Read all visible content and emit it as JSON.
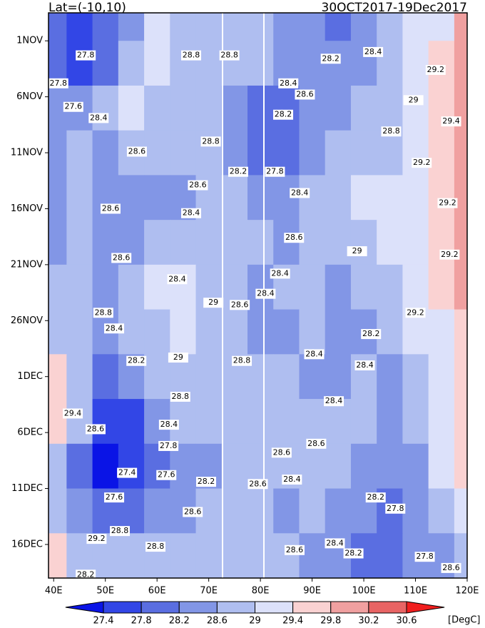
{
  "chart_data": {
    "type": "heatmap",
    "title_left": "Lat=(-10,10)",
    "title_right": "30OCT2017-19Dec2017",
    "unit": "[DegC]",
    "xlim": [
      39,
      120
    ],
    "ylim": [
      -0.5,
      50
    ],
    "xticks": [
      {
        "value": 40,
        "label": "40E"
      },
      {
        "value": 50,
        "label": "50E"
      },
      {
        "value": 60,
        "label": "60E"
      },
      {
        "value": 70,
        "label": "70E"
      },
      {
        "value": 80,
        "label": "80E"
      },
      {
        "value": 90,
        "label": "90E"
      },
      {
        "value": 100,
        "label": "100E"
      },
      {
        "value": 110,
        "label": "110E"
      },
      {
        "value": 120,
        "label": "120E"
      }
    ],
    "yticks": [
      {
        "value": 2,
        "label": "1NOV"
      },
      {
        "value": 7,
        "label": "6NOV"
      },
      {
        "value": 12,
        "label": "11NOV"
      },
      {
        "value": 17,
        "label": "16NOV"
      },
      {
        "value": 22,
        "label": "21NOV"
      },
      {
        "value": 27,
        "label": "26NOV"
      },
      {
        "value": 32,
        "label": "1DEC"
      },
      {
        "value": 37,
        "label": "6DEC"
      },
      {
        "value": 42,
        "label": "11DEC"
      },
      {
        "value": 47,
        "label": "16DEC"
      }
    ],
    "levels": [
      27.4,
      27.8,
      28.2,
      28.6,
      29,
      29.4,
      29.8,
      30.2,
      30.6
    ],
    "colors": [
      "#0a14e6",
      "#3246e6",
      "#5a6ee1",
      "#8296e6",
      "#afbef0",
      "#dce1fa",
      "#fad2d2",
      "#f0a0a0",
      "#e86464",
      "#f01e1e"
    ],
    "x": [
      40,
      45,
      50,
      55,
      60,
      65,
      70,
      75,
      80,
      85,
      90,
      95,
      100,
      105,
      110,
      115,
      120
    ],
    "y": [
      0,
      4,
      8,
      12,
      16,
      20,
      24,
      28,
      32,
      36,
      40,
      44,
      48
    ],
    "z": [
      [
        27.8,
        27.6,
        27.8,
        28.4,
        29.1,
        28.8,
        28.8,
        28.6,
        28.6,
        28.4,
        28.2,
        28.0,
        28.4,
        28.6,
        29.0,
        29.3,
        29.8
      ],
      [
        27.8,
        27.6,
        28.0,
        28.6,
        29.1,
        28.8,
        28.6,
        28.6,
        28.6,
        28.4,
        28.4,
        28.2,
        28.4,
        28.8,
        29.1,
        29.4,
        29.8
      ],
      [
        28.2,
        28.2,
        28.6,
        29.0,
        28.8,
        28.6,
        28.6,
        28.4,
        28.0,
        28.0,
        28.4,
        28.4,
        28.6,
        28.8,
        29.1,
        29.5,
        29.8
      ],
      [
        28.4,
        28.6,
        28.4,
        28.6,
        28.8,
        28.6,
        28.6,
        28.4,
        27.8,
        27.8,
        28.4,
        28.6,
        28.6,
        28.8,
        29.2,
        29.4,
        29.8
      ],
      [
        28.4,
        28.6,
        28.4,
        28.2,
        28.4,
        28.4,
        28.6,
        28.6,
        28.2,
        28.4,
        28.6,
        28.8,
        29.0,
        29.1,
        29.2,
        29.4,
        29.9
      ],
      [
        28.4,
        28.6,
        28.2,
        28.4,
        28.6,
        28.6,
        28.6,
        28.8,
        28.6,
        28.4,
        28.6,
        28.8,
        28.8,
        29.0,
        29.2,
        29.4,
        29.8
      ],
      [
        28.6,
        28.8,
        28.4,
        28.6,
        29.1,
        29.1,
        28.8,
        28.6,
        28.4,
        28.6,
        28.6,
        28.4,
        28.6,
        28.8,
        29.2,
        29.4,
        29.8
      ],
      [
        28.8,
        28.6,
        28.4,
        28.6,
        28.8,
        29.0,
        28.8,
        28.6,
        28.2,
        28.2,
        28.6,
        28.4,
        28.4,
        28.6,
        29.0,
        29.2,
        29.6
      ],
      [
        29.4,
        28.6,
        28.0,
        28.2,
        28.6,
        28.8,
        28.6,
        28.6,
        28.6,
        28.6,
        28.4,
        28.4,
        28.6,
        28.4,
        28.8,
        29.0,
        29.4
      ],
      [
        29.4,
        28.6,
        27.6,
        27.6,
        28.2,
        28.6,
        28.8,
        28.6,
        28.8,
        28.6,
        28.6,
        28.6,
        28.6,
        28.4,
        28.8,
        29.2,
        29.4
      ],
      [
        28.6,
        27.8,
        27.2,
        27.4,
        27.8,
        28.2,
        28.4,
        28.6,
        28.8,
        28.6,
        28.8,
        28.6,
        28.4,
        28.2,
        28.4,
        29.0,
        29.4
      ],
      [
        28.8,
        28.2,
        27.8,
        28.0,
        28.2,
        28.4,
        28.6,
        28.8,
        28.6,
        28.4,
        28.6,
        28.4,
        28.2,
        27.8,
        28.4,
        28.6,
        29.0
      ],
      [
        29.4,
        28.8,
        28.6,
        28.6,
        28.8,
        28.6,
        28.8,
        28.8,
        28.6,
        28.6,
        28.4,
        28.2,
        28.0,
        27.8,
        28.2,
        28.4,
        28.8
      ]
    ],
    "contour_labels": {
      "lon": [
        46.2,
        66.6,
        74,
        93.6,
        101.8,
        113.9,
        40.9,
        85.4,
        88.6,
        43.8,
        48.7,
        84.4,
        109.6,
        116.9,
        105.3,
        56.1,
        70.4,
        75.7,
        82.8,
        111.2,
        87.6,
        67.9,
        116.2,
        66.6,
        51,
        86.5,
        98.7,
        53.1,
        116.6,
        63.9,
        83.8,
        81,
        70.9,
        76,
        49.6,
        51.7,
        110,
        101.4,
        76.4,
        90.4,
        56,
        64.1,
        100.2,
        64.5,
        94.2,
        43.7,
        48.1,
        62.3,
        62.2,
        84.1,
        90.8,
        86.1,
        54.2,
        61.8,
        69.5,
        79.5,
        51.7,
        66.9,
        102.3,
        106.1,
        52.8,
        48.3,
        59.7,
        94.4,
        98,
        111.8,
        86.6,
        116.9,
        46.2
      ],
      "day": [
        3.3,
        3.3,
        3.3,
        3.6,
        3,
        4.6,
        5.8,
        5.8,
        6.8,
        7.9,
        8.9,
        8.6,
        7.3,
        9.2,
        10.1,
        11.9,
        11,
        13.7,
        13.7,
        12.9,
        15.6,
        14.9,
        16.5,
        17.4,
        17,
        19.6,
        20.8,
        21.4,
        21.1,
        23.3,
        22.8,
        24.6,
        25.4,
        25.6,
        26.3,
        27.7,
        26.3,
        28.2,
        30.6,
        30,
        30.6,
        30.3,
        31,
        33.8,
        34.2,
        35.3,
        36.7,
        36.3,
        38.2,
        38.8,
        38,
        41.2,
        40.6,
        40.8,
        41.4,
        41.6,
        42.8,
        44.1,
        42.8,
        43.8,
        45.8,
        46.5,
        47.2,
        46.9,
        47.8,
        48.1,
        47.5,
        49.1,
        49.7
      ],
      "values": [
        27.8,
        28.8,
        28.8,
        28.2,
        28.4,
        29.2,
        27.8,
        28.4,
        28.6,
        27.6,
        28.4,
        28.2,
        29,
        29.4,
        28.8,
        28.6,
        28.8,
        28.2,
        27.8,
        29.2,
        28.4,
        28.6,
        29.2,
        28.4,
        28.6,
        28.6,
        29,
        28.6,
        29.2,
        28.4,
        28.4,
        28.4,
        29,
        28.6,
        28.8,
        28.4,
        29.2,
        28.2,
        28.8,
        28.4,
        28.2,
        29,
        28.4,
        28.8,
        28.4,
        29.4,
        28.6,
        28.4,
        27.8,
        28.6,
        28.6,
        28.4,
        27.4,
        27.6,
        28.2,
        28.6,
        27.6,
        28.6,
        28.2,
        27.8,
        28.8,
        29.2,
        28.8,
        28.4,
        28.2,
        27.8,
        28.6,
        28.6,
        28.2
      ]
    }
  }
}
